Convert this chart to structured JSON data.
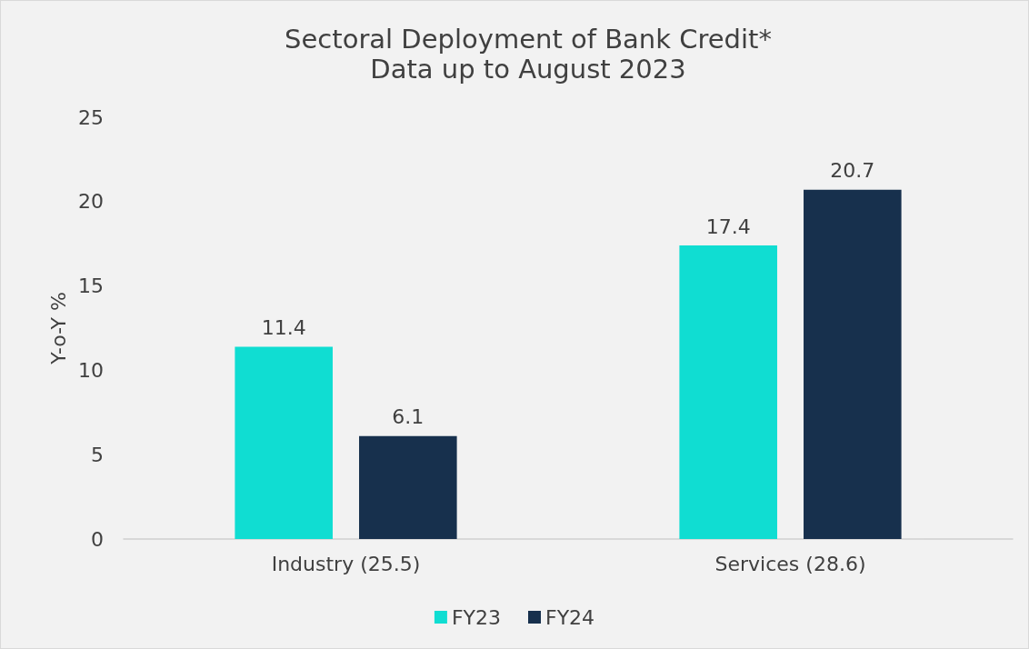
{
  "chart_data": {
    "type": "bar",
    "title": "Sectoral Deployment of Bank Credit*",
    "subtitle": "Data up to August 2023",
    "ylabel": "Y-o-Y %",
    "categories": [
      "Industry (25.5)",
      "Services (28.6)"
    ],
    "series": [
      {
        "name": "FY23",
        "color": "#10ddd2",
        "values": [
          11.4,
          17.4
        ]
      },
      {
        "name": "FY24",
        "color": "#17304d",
        "values": [
          6.1,
          20.7
        ]
      }
    ],
    "ylim": [
      0,
      25
    ],
    "yticks": [
      0,
      5,
      10,
      15,
      20,
      25
    ],
    "grid": false,
    "legend": "bottom",
    "data_labels": true
  }
}
